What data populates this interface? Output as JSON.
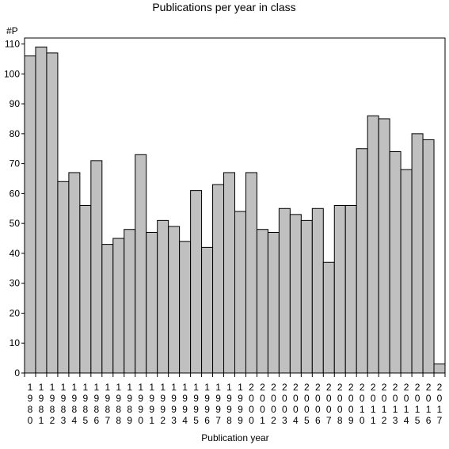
{
  "chart_data": {
    "type": "bar",
    "title": "Publications per year in class",
    "xlabel": "Publication year",
    "ylabel": "#P",
    "ylim": [
      0,
      112
    ],
    "yticks": [
      0,
      10,
      20,
      30,
      40,
      50,
      60,
      70,
      80,
      90,
      100,
      110
    ],
    "grid": false,
    "legend": "none",
    "bar_color": "#c0c0c0",
    "categories": [
      "1980",
      "1981",
      "1982",
      "1983",
      "1984",
      "1985",
      "1986",
      "1987",
      "1988",
      "1989",
      "1990",
      "1991",
      "1992",
      "1993",
      "1994",
      "1995",
      "1996",
      "1997",
      "1998",
      "1999",
      "2000",
      "2001",
      "2002",
      "2003",
      "2004",
      "2005",
      "2006",
      "2007",
      "2008",
      "2009",
      "2010",
      "2011",
      "2012",
      "2013",
      "2014",
      "2015",
      "2016",
      "2017"
    ],
    "values": [
      106,
      109,
      107,
      64,
      67,
      56,
      71,
      43,
      45,
      48,
      73,
      47,
      51,
      49,
      44,
      61,
      42,
      63,
      67,
      54,
      67,
      48,
      47,
      55,
      53,
      51,
      55,
      37,
      56,
      56,
      75,
      86,
      85,
      74,
      68,
      80,
      78,
      3
    ]
  }
}
